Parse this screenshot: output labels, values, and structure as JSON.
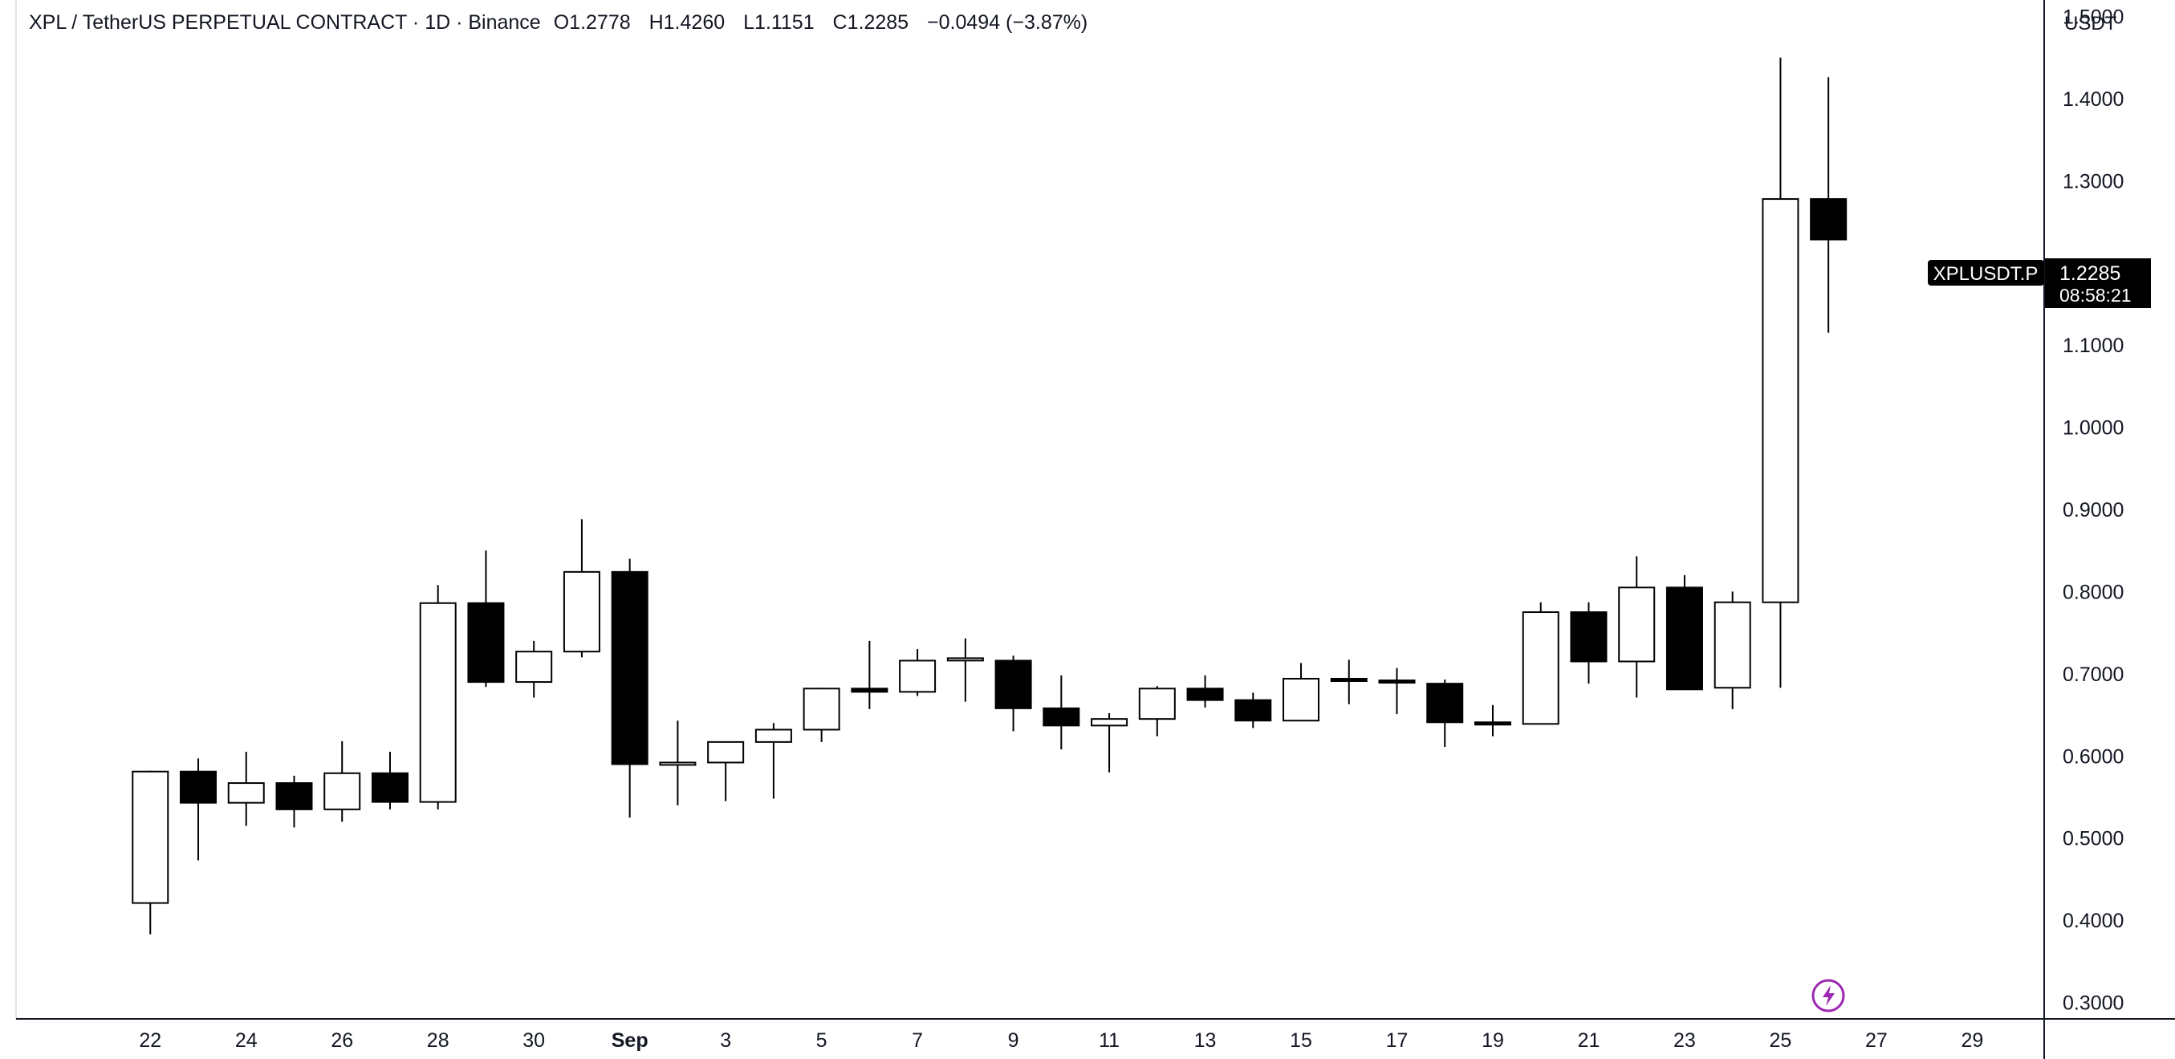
{
  "legend": {
    "title": "XPL / TetherUS PERPETUAL CONTRACT · 1D · Binance",
    "open_key": "O",
    "open_val": "1.2778",
    "high_key": "H",
    "high_val": "1.4260",
    "low_key": "L",
    "low_val": "1.1151",
    "close_key": "C",
    "close_val": "1.2285",
    "change": "−0.0494 (−3.87%)"
  },
  "price_axis": {
    "currency": "USDT",
    "ticks": [
      "1.5000",
      "1.4000",
      "1.3000",
      "1.1000",
      "1.0000",
      "0.9000",
      "0.8000",
      "0.7000",
      "0.6000",
      "0.5000",
      "0.4000",
      "0.3000"
    ]
  },
  "last_price": {
    "symbol": "XPLUSDT.P",
    "price": "1.2285",
    "countdown": "08:58:21"
  },
  "time_axis": {
    "labels": [
      {
        "text": "22",
        "day": 22,
        "bold": false
      },
      {
        "text": "24",
        "day": 24,
        "bold": false
      },
      {
        "text": "26",
        "day": 26,
        "bold": false
      },
      {
        "text": "28",
        "day": 28,
        "bold": false
      },
      {
        "text": "30",
        "day": 30,
        "bold": false
      },
      {
        "text": "Sep",
        "day": 32,
        "bold": true
      },
      {
        "text": "3",
        "day": 34,
        "bold": false
      },
      {
        "text": "5",
        "day": 36,
        "bold": false
      },
      {
        "text": "7",
        "day": 38,
        "bold": false
      },
      {
        "text": "9",
        "day": 40,
        "bold": false
      },
      {
        "text": "11",
        "day": 42,
        "bold": false
      },
      {
        "text": "13",
        "day": 44,
        "bold": false
      },
      {
        "text": "15",
        "day": 46,
        "bold": false
      },
      {
        "text": "17",
        "day": 48,
        "bold": false
      },
      {
        "text": "19",
        "day": 50,
        "bold": false
      },
      {
        "text": "21",
        "day": 52,
        "bold": false
      },
      {
        "text": "23",
        "day": 54,
        "bold": false
      },
      {
        "text": "25",
        "day": 56,
        "bold": false
      },
      {
        "text": "27",
        "day": 58,
        "bold": false
      },
      {
        "text": "29",
        "day": 60,
        "bold": false
      }
    ]
  },
  "chart_data": {
    "type": "candlestick",
    "interval": "1D",
    "ylim": [
      0.28,
      1.52
    ],
    "day_range": [
      19.2,
      61.5
    ],
    "colors": {
      "up": "#ffffff",
      "down": "#000000",
      "outline": "#000000",
      "wick": "#000000"
    },
    "candles": [
      {
        "date": "2025-08-22",
        "day": 22,
        "open": 0.421,
        "high": 0.582,
        "low": 0.383,
        "close": 0.581
      },
      {
        "date": "2025-08-23",
        "day": 23,
        "open": 0.581,
        "high": 0.597,
        "low": 0.473,
        "close": 0.543
      },
      {
        "date": "2025-08-24",
        "day": 24,
        "open": 0.543,
        "high": 0.605,
        "low": 0.515,
        "close": 0.567
      },
      {
        "date": "2025-08-25",
        "day": 25,
        "open": 0.567,
        "high": 0.576,
        "low": 0.513,
        "close": 0.535
      },
      {
        "date": "2025-08-26",
        "day": 26,
        "open": 0.535,
        "high": 0.618,
        "low": 0.52,
        "close": 0.579
      },
      {
        "date": "2025-08-27",
        "day": 27,
        "open": 0.579,
        "high": 0.605,
        "low": 0.535,
        "close": 0.544
      },
      {
        "date": "2025-08-28",
        "day": 28,
        "open": 0.544,
        "high": 0.808,
        "low": 0.535,
        "close": 0.786
      },
      {
        "date": "2025-08-29",
        "day": 29,
        "open": 0.786,
        "high": 0.85,
        "low": 0.684,
        "close": 0.69
      },
      {
        "date": "2025-08-30",
        "day": 30,
        "open": 0.69,
        "high": 0.74,
        "low": 0.671,
        "close": 0.727
      },
      {
        "date": "2025-08-31",
        "day": 31,
        "open": 0.727,
        "high": 0.888,
        "low": 0.72,
        "close": 0.824
      },
      {
        "date": "2025-09-01",
        "day": 32,
        "open": 0.824,
        "high": 0.84,
        "low": 0.525,
        "close": 0.59
      },
      {
        "date": "2025-09-02",
        "day": 33,
        "open": 0.59,
        "high": 0.643,
        "low": 0.54,
        "close": 0.592
      },
      {
        "date": "2025-09-03",
        "day": 34,
        "open": 0.592,
        "high": 0.617,
        "low": 0.545,
        "close": 0.617
      },
      {
        "date": "2025-09-04",
        "day": 35,
        "open": 0.617,
        "high": 0.64,
        "low": 0.548,
        "close": 0.632
      },
      {
        "date": "2025-09-05",
        "day": 36,
        "open": 0.632,
        "high": 0.683,
        "low": 0.617,
        "close": 0.682
      },
      {
        "date": "2025-09-06",
        "day": 37,
        "open": 0.682,
        "high": 0.74,
        "low": 0.657,
        "close": 0.678
      },
      {
        "date": "2025-09-07",
        "day": 38,
        "open": 0.678,
        "high": 0.73,
        "low": 0.673,
        "close": 0.716
      },
      {
        "date": "2025-09-08",
        "day": 39,
        "open": 0.718,
        "high": 0.743,
        "low": 0.666,
        "close": 0.719
      },
      {
        "date": "2025-09-09",
        "day": 40,
        "open": 0.716,
        "high": 0.722,
        "low": 0.63,
        "close": 0.658
      },
      {
        "date": "2025-09-10",
        "day": 41,
        "open": 0.658,
        "high": 0.698,
        "low": 0.608,
        "close": 0.637
      },
      {
        "date": "2025-09-11",
        "day": 42,
        "open": 0.637,
        "high": 0.652,
        "low": 0.58,
        "close": 0.645
      },
      {
        "date": "2025-09-12",
        "day": 43,
        "open": 0.645,
        "high": 0.685,
        "low": 0.624,
        "close": 0.682
      },
      {
        "date": "2025-09-13",
        "day": 44,
        "open": 0.682,
        "high": 0.698,
        "low": 0.659,
        "close": 0.668
      },
      {
        "date": "2025-09-14",
        "day": 45,
        "open": 0.668,
        "high": 0.677,
        "low": 0.634,
        "close": 0.643
      },
      {
        "date": "2025-09-15",
        "day": 46,
        "open": 0.643,
        "high": 0.713,
        "low": 0.643,
        "close": 0.694
      },
      {
        "date": "2025-09-16",
        "day": 47,
        "open": 0.694,
        "high": 0.717,
        "low": 0.663,
        "close": 0.692
      },
      {
        "date": "2025-09-17",
        "day": 48,
        "open": 0.692,
        "high": 0.707,
        "low": 0.651,
        "close": 0.69
      },
      {
        "date": "2025-09-18",
        "day": 49,
        "open": 0.688,
        "high": 0.693,
        "low": 0.611,
        "close": 0.641
      },
      {
        "date": "2025-09-19",
        "day": 50,
        "open": 0.641,
        "high": 0.662,
        "low": 0.624,
        "close": 0.639
      },
      {
        "date": "2025-09-20",
        "day": 51,
        "open": 0.639,
        "high": 0.787,
        "low": 0.639,
        "close": 0.775
      },
      {
        "date": "2025-09-21",
        "day": 52,
        "open": 0.775,
        "high": 0.787,
        "low": 0.688,
        "close": 0.715
      },
      {
        "date": "2025-09-22",
        "day": 53,
        "open": 0.715,
        "high": 0.843,
        "low": 0.671,
        "close": 0.805
      },
      {
        "date": "2025-09-23",
        "day": 54,
        "open": 0.805,
        "high": 0.82,
        "low": 0.681,
        "close": 0.681
      },
      {
        "date": "2025-09-24",
        "day": 55,
        "open": 0.683,
        "high": 0.8,
        "low": 0.657,
        "close": 0.787
      },
      {
        "date": "2025-09-25",
        "day": 56,
        "open": 0.787,
        "high": 1.45,
        "low": 0.683,
        "close": 1.2778
      },
      {
        "date": "2025-09-26",
        "day": 57,
        "open": 1.2778,
        "high": 1.426,
        "low": 1.1151,
        "close": 1.2285
      }
    ]
  }
}
